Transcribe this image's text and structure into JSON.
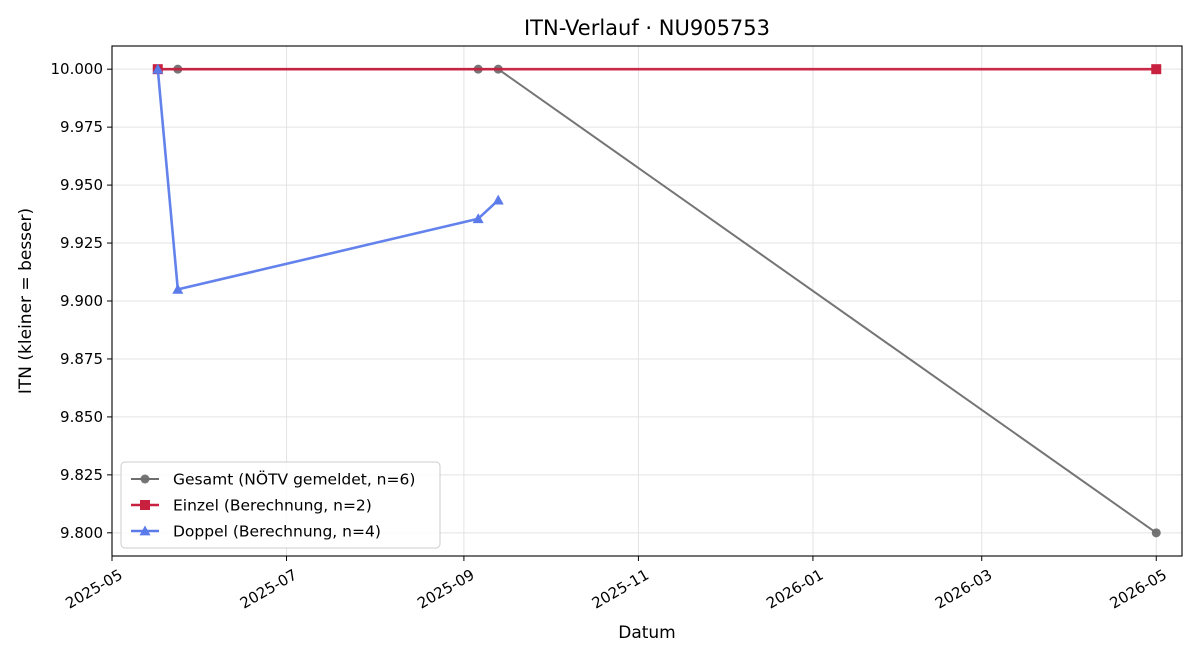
{
  "chart_data": {
    "type": "line",
    "title": "ITN-Verlauf · NU905753",
    "xlabel": "Datum",
    "ylabel": "ITN  (kleiner = besser)",
    "x_type": "date",
    "xlim": [
      "2025-05-01",
      "2026-05-10"
    ],
    "ylim": [
      9.79,
      10.01
    ],
    "x_ticks": [
      "2025-05-01",
      "2025-07-01",
      "2025-09-01",
      "2025-11-01",
      "2026-01-01",
      "2026-03-01",
      "2026-05-01"
    ],
    "x_tick_labels": [
      "2025-05",
      "2025-07",
      "2025-09",
      "2025-11",
      "2026-01",
      "2026-03",
      "2026-05"
    ],
    "y_ticks": [
      9.8,
      9.825,
      9.85,
      9.875,
      9.9,
      9.925,
      9.95,
      9.975,
      10.0
    ],
    "y_tick_labels": [
      "9.800",
      "9.825",
      "9.850",
      "9.875",
      "9.900",
      "9.925",
      "9.950",
      "9.975",
      "10.000"
    ],
    "grid": true,
    "legend_position": "bottom-left",
    "series": [
      {
        "name": "Gesamt (NÖTV gemeldet, n=6)",
        "color": "#6e6e6e",
        "marker": "circle",
        "points": [
          {
            "x": "2025-05-17",
            "y": 10.0
          },
          {
            "x": "2025-05-24",
            "y": 10.0
          },
          {
            "x": "2025-09-06",
            "y": 10.0
          },
          {
            "x": "2025-09-13",
            "y": 10.0
          },
          {
            "x": "2026-05-01",
            "y": 9.8
          }
        ]
      },
      {
        "name": "Einzel (Berechnung, n=2)",
        "color": "#c8203f",
        "marker": "square",
        "points": [
          {
            "x": "2025-05-17",
            "y": 10.0
          },
          {
            "x": "2026-05-01",
            "y": 10.0
          }
        ]
      },
      {
        "name": "Doppel (Berechnung, n=4)",
        "color": "#5b7bea",
        "marker": "triangle",
        "points": [
          {
            "x": "2025-05-17",
            "y": 10.0
          },
          {
            "x": "2025-05-24",
            "y": 9.905
          },
          {
            "x": "2025-09-06",
            "y": 9.9355
          },
          {
            "x": "2025-09-13",
            "y": 9.9435
          }
        ]
      }
    ]
  }
}
